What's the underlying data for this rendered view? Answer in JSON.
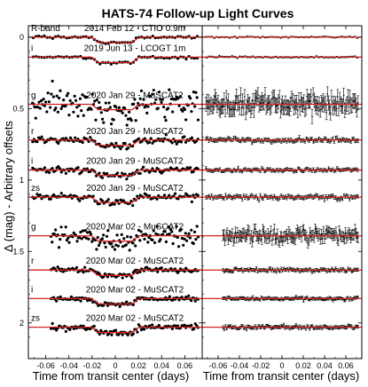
{
  "chart_data": {
    "type": "scatter",
    "title": "HATS-74 Follow-up Light Curves",
    "xlabel": "Time from transit center (days)",
    "ylabel": "Δ (mag) - Arbitrary offsets",
    "xlim": [
      -0.075,
      0.075
    ],
    "ylim": [
      2.25,
      -0.08
    ],
    "x_ticks": [
      -0.06,
      -0.04,
      -0.02,
      0,
      0.02,
      0.04,
      0.06
    ],
    "x_tick_labels": [
      "-0.06",
      "-0.04",
      "-0.02",
      "0",
      "0.02",
      "0.04",
      "0.06"
    ],
    "y_ticks": [
      0,
      0.5,
      1,
      1.5,
      2
    ],
    "y_tick_labels": [
      "0",
      "0.5",
      "1",
      "1.5",
      "2"
    ],
    "panels": [
      {
        "role": "light curves with transit model"
      },
      {
        "role": "residuals"
      }
    ],
    "transit": {
      "depth": 0.038,
      "half_duration": 0.0205,
      "ingress": 0.006
    },
    "series": [
      {
        "band": "R-band",
        "date": "2014 Feb 12 - CTIO 0.9m",
        "offset": 0.0,
        "scatter": 0.004,
        "x_range": [
          -0.072,
          0.072
        ],
        "n_points": 60
      },
      {
        "band": "i",
        "date": "2019 Jun 13 - LCOGT 1m",
        "offset": 0.14,
        "scatter": 0.005,
        "x_range": [
          -0.072,
          0.072
        ],
        "n_points": 60
      },
      {
        "band": "g",
        "date": "2020 Jan 29 - MuSCAT2",
        "offset": 0.47,
        "scatter": 0.05,
        "x_range": [
          -0.072,
          0.072
        ],
        "n_points": 150
      },
      {
        "band": "r",
        "date": "2020 Jan 29 - MuSCAT2",
        "offset": 0.72,
        "scatter": 0.012,
        "x_range": [
          -0.072,
          0.072
        ],
        "n_points": 110
      },
      {
        "band": "i",
        "date": "2020 Jan 29 - MuSCAT2",
        "offset": 0.93,
        "scatter": 0.01,
        "x_range": [
          -0.072,
          0.072
        ],
        "n_points": 110
      },
      {
        "band": "zs",
        "date": "2020 Jan 29 - MuSCAT2",
        "offset": 1.12,
        "scatter": 0.012,
        "x_range": [
          -0.072,
          0.072
        ],
        "n_points": 110
      },
      {
        "band": "g",
        "date": "2020 Mar 02 - MuSCAT2",
        "offset": 1.39,
        "scatter": 0.035,
        "x_range": [
          -0.056,
          0.072
        ],
        "n_points": 130
      },
      {
        "band": "r",
        "date": "2020 Mar 02 - MuSCAT2",
        "offset": 1.63,
        "scatter": 0.01,
        "x_range": [
          -0.056,
          0.072
        ],
        "n_points": 110
      },
      {
        "band": "i",
        "date": "2020 Mar 02 - MuSCAT2",
        "offset": 1.83,
        "scatter": 0.009,
        "x_range": [
          -0.056,
          0.072
        ],
        "n_points": 110
      },
      {
        "band": "zs",
        "date": "2020 Mar 02 - MuSCAT2",
        "offset": 2.03,
        "scatter": 0.01,
        "x_range": [
          -0.056,
          0.072
        ],
        "n_points": 110
      }
    ],
    "grid": false,
    "legend": "none",
    "colors": {
      "data": "#000000",
      "model": "#d62020",
      "axes": "#000000"
    }
  }
}
